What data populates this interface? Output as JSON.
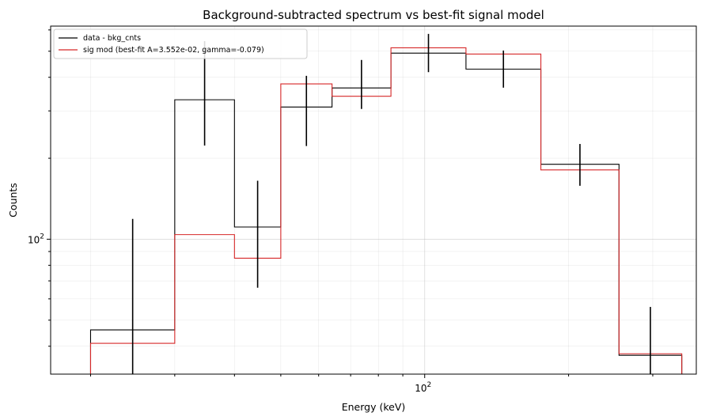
{
  "chart_data": {
    "type": "step-histogram",
    "title": "Background-subtracted spectrum vs best-fit signal model",
    "xlabel": "Energy (keV)",
    "ylabel": "Counts",
    "xscale": "log",
    "yscale": "log",
    "xlim": [
      16.5,
      370
    ],
    "ylim": [
      31.5,
      620
    ],
    "x_major_ticks": [
      100
    ],
    "x_major_tick_labels": [
      "10^2"
    ],
    "y_major_ticks": [
      100
    ],
    "y_major_tick_labels": [
      "10^2"
    ],
    "grid": true,
    "legend_position": "top-left",
    "bin_edges": [
      20,
      30,
      40,
      50,
      64,
      85,
      122,
      175,
      255,
      345
    ],
    "series": [
      {
        "name": "data - bkg_cnts",
        "color": "#000000",
        "values": [
          46,
          330,
          111,
          310,
          365,
          492,
          429,
          190,
          37
        ],
        "error_low": [
          21,
          223,
          66,
          222,
          305,
          418,
          366,
          158,
          0
        ],
        "error_high": [
          119,
          545,
          165,
          405,
          464,
          580,
          503,
          226,
          56
        ]
      },
      {
        "name": "sig mod (best-fit A=3.552e-02, gamma=-0.079)",
        "color": "#d62728",
        "values": [
          41,
          104,
          85,
          378,
          340,
          515,
          488,
          181,
          37.5
        ]
      }
    ]
  }
}
